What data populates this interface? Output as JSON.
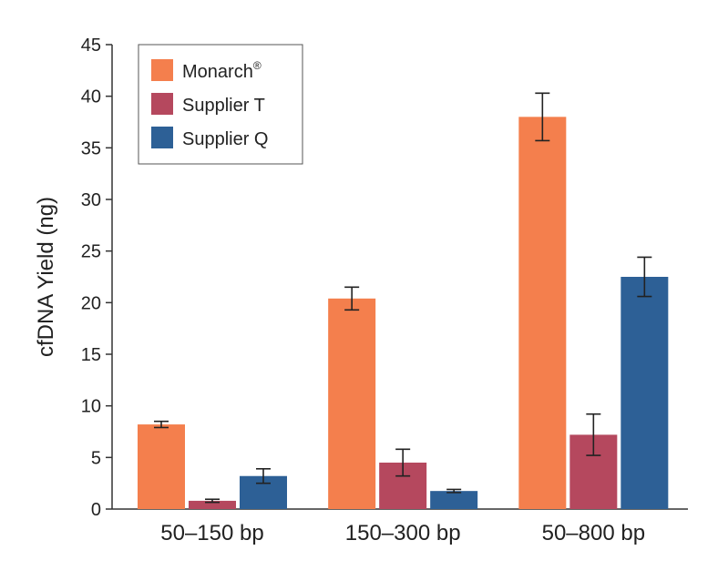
{
  "chart_data": {
    "type": "bar",
    "title": "",
    "xlabel": "",
    "ylabel": "cfDNA Yield (ng)",
    "ylim": [
      0,
      45
    ],
    "yticks": [
      0,
      5,
      10,
      15,
      20,
      25,
      30,
      35,
      40,
      45
    ],
    "grid": false,
    "legend_position": "top-left",
    "categories": [
      "50–150 bp",
      "150–300 bp",
      "50–800 bp"
    ],
    "series": [
      {
        "name": "Monarch",
        "name_superscript": "®",
        "color": "#f47f4d",
        "values": [
          8.2,
          20.4,
          38.0
        ],
        "errors": [
          0.3,
          1.1,
          2.3
        ]
      },
      {
        "name": "Supplier T",
        "color": "#b5485e",
        "values": [
          0.8,
          4.5,
          7.2
        ],
        "errors": [
          0.15,
          1.3,
          2.0
        ]
      },
      {
        "name": "Supplier Q",
        "color": "#2d6096",
        "values": [
          3.2,
          1.75,
          22.5
        ],
        "errors": [
          0.7,
          0.15,
          1.9
        ]
      }
    ]
  }
}
